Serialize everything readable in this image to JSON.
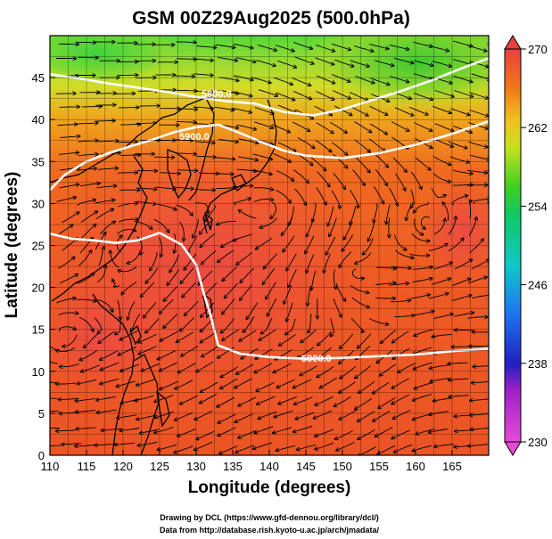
{
  "chart_data": {
    "type": "heatmap",
    "title": "GSM 00Z29Aug2025 (500.0hPa)",
    "xlabel": "Longitude (degrees)",
    "ylabel": "Latitude  (degrees)",
    "xlim": [
      110,
      170
    ],
    "ylim": [
      0,
      50
    ],
    "xticks": [
      "110",
      "115",
      "120",
      "125",
      "130",
      "135",
      "140",
      "145",
      "150",
      "155",
      "160",
      "165"
    ],
    "yticks": [
      "0",
      "5",
      "10",
      "15",
      "20",
      "25",
      "30",
      "35",
      "40",
      "45"
    ],
    "field": "temperature (K) shaded, geopotential height contours, wind streamlines",
    "colorbar": {
      "min": 230,
      "max": 270,
      "ticks": [
        "270",
        "262",
        "254",
        "246",
        "238",
        "230"
      ]
    },
    "contours": [
      {
        "label": "5800.0",
        "lon": [
          110,
          114,
          118,
          122,
          126,
          130,
          134,
          138,
          142,
          146,
          150,
          154,
          158,
          162,
          166,
          170
        ],
        "lat": [
          45.4,
          44.9,
          44.3,
          43.8,
          43.3,
          42.7,
          42.2,
          41.9,
          40.9,
          40.5,
          41.2,
          42.3,
          43.4,
          44.6,
          46.0,
          47.3
        ]
      },
      {
        "label": "5900.0",
        "lon": [
          110,
          112,
          115,
          118,
          121,
          124,
          127,
          130,
          133,
          136,
          139,
          142,
          145,
          150,
          155,
          160,
          165,
          170
        ],
        "lat": [
          31.6,
          33.4,
          35.0,
          36.0,
          36.8,
          37.6,
          38.5,
          39.1,
          39.4,
          38.4,
          37.3,
          36.3,
          35.7,
          35.4,
          36.0,
          37.0,
          38.3,
          39.8
        ]
      },
      {
        "label": "5900.0",
        "lon": [
          110,
          113,
          116,
          119,
          122,
          125,
          128,
          130,
          131,
          132,
          133,
          136,
          140,
          145,
          150,
          155,
          160,
          165,
          170
        ],
        "lat": [
          26.4,
          25.8,
          25.6,
          25.3,
          25.6,
          26.5,
          25.1,
          22.7,
          19.4,
          16.6,
          13.1,
          12.1,
          11.7,
          11.5,
          11.6,
          11.8,
          12.0,
          12.4,
          12.7
        ]
      }
    ]
  },
  "credits": {
    "line1": "Drawing by DCL (https://www.gfd-dennou.org/library/dcl/)",
    "line2": "Data from http://database.rish.kyoto-u.ac.jp/arch/jmadata/"
  }
}
